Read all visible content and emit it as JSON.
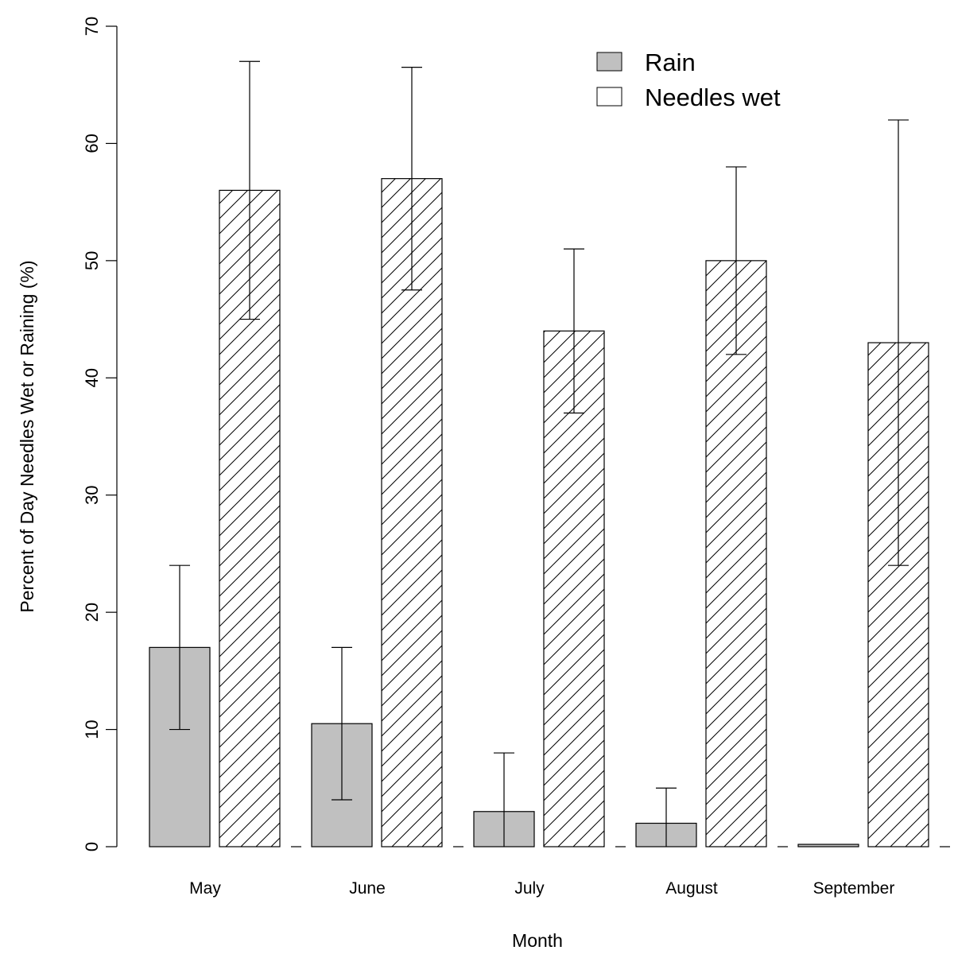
{
  "chart_data": {
    "type": "bar",
    "title": "",
    "xlabel": "Month",
    "ylabel": "Percent of Day Needles Wet or Raining (%)",
    "ylim": [
      0,
      70
    ],
    "yticks": [
      "0",
      "10",
      "20",
      "30",
      "40",
      "50",
      "60",
      "70"
    ],
    "categories": [
      "May",
      "June",
      "July",
      "August",
      "September"
    ],
    "legend_position": "top-right",
    "grid": false,
    "series": [
      {
        "name": "Rain",
        "fill": "solid-gray",
        "color": "#c0c0c0",
        "values": [
          17,
          10.5,
          3,
          2,
          0.2
        ],
        "error_low": [
          10,
          4,
          0,
          0,
          0
        ],
        "error_high": [
          24,
          17,
          8,
          5,
          0.2
        ]
      },
      {
        "name": "Needles wet",
        "fill": "diagonal-hatch",
        "color": "#ffffff",
        "values": [
          56,
          57,
          44,
          50,
          43
        ],
        "error_low": [
          45,
          47.5,
          37,
          42,
          24
        ],
        "error_high": [
          67,
          66.5,
          51,
          58,
          62
        ]
      }
    ]
  }
}
